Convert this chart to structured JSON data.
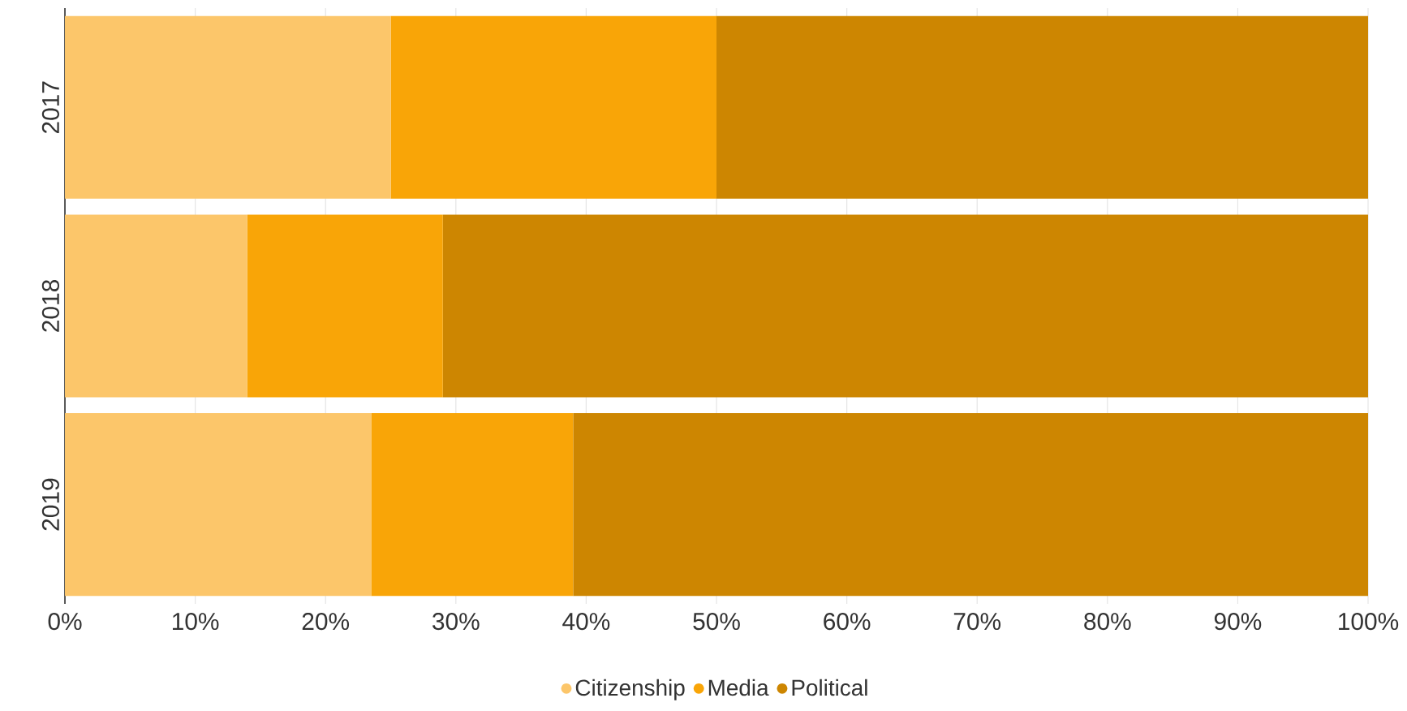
{
  "chart_data": {
    "type": "bar",
    "orientation": "horizontal",
    "stacked": true,
    "categories": [
      "2017",
      "2018",
      "2019"
    ],
    "series": [
      {
        "name": "Citizenship",
        "color": "#fcc66a",
        "values": [
          25,
          14,
          23.5
        ]
      },
      {
        "name": "Media",
        "color": "#f9a507",
        "values": [
          25,
          15,
          15.5
        ]
      },
      {
        "name": "Political",
        "color": "#cd8601",
        "values": [
          50,
          71,
          61
        ]
      }
    ],
    "xlim": [
      0,
      100
    ],
    "xticks": [
      {
        "value": 0,
        "label": "0%"
      },
      {
        "value": 10,
        "label": "10%"
      },
      {
        "value": 20,
        "label": "20%"
      },
      {
        "value": 30,
        "label": "30%"
      },
      {
        "value": 40,
        "label": "40%"
      },
      {
        "value": 50,
        "label": "50%"
      },
      {
        "value": 60,
        "label": "60%"
      },
      {
        "value": 70,
        "label": "70%"
      },
      {
        "value": 80,
        "label": "80%"
      },
      {
        "value": 90,
        "label": "90%"
      },
      {
        "value": 100,
        "label": "100%"
      }
    ],
    "grid": "x",
    "legend": "bottom",
    "marker": "circle"
  }
}
